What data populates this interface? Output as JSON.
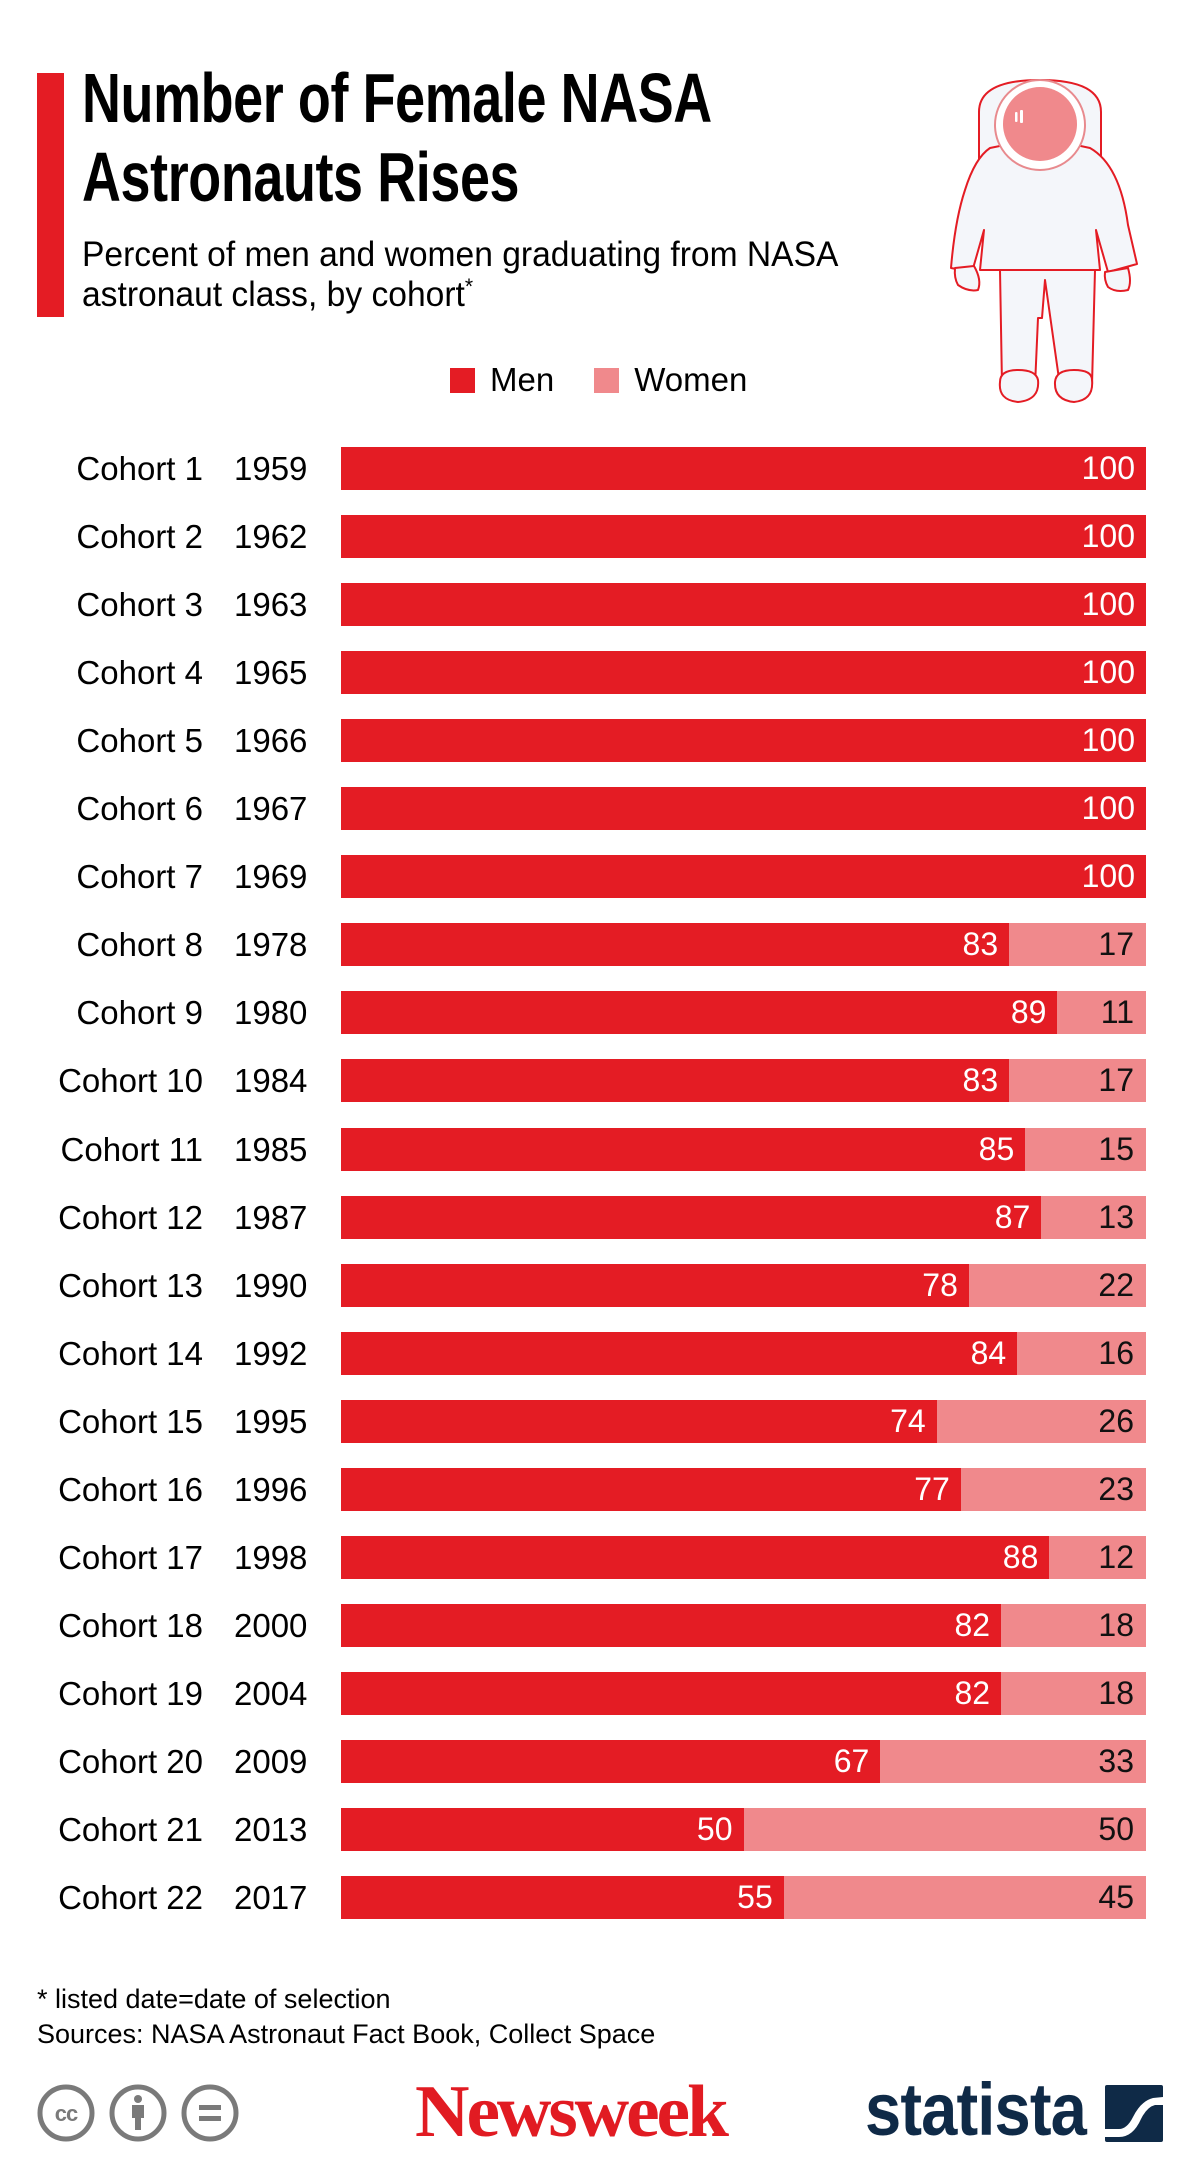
{
  "header": {
    "title_line1": "Number of Female NASA",
    "title_line2": "Astronauts Rises",
    "subtitle_line1": "Percent of men and women graduating from NASA",
    "subtitle_line2": "astronaut class, by cohort",
    "subtitle_mark": "*",
    "accent_color": "#e41c24"
  },
  "legend": {
    "items": [
      {
        "label": "Men",
        "color": "#e41c24"
      },
      {
        "label": "Women",
        "color": "#f0898c"
      }
    ]
  },
  "illustration": {
    "icon": "astronaut-icon"
  },
  "rows": [
    {
      "cohort": "Cohort 1",
      "year": "1959",
      "men": 100,
      "women": 0,
      "men_label": "100",
      "women_label": ""
    },
    {
      "cohort": "Cohort 2",
      "year": "1962",
      "men": 100,
      "women": 0,
      "men_label": "100",
      "women_label": ""
    },
    {
      "cohort": "Cohort 3",
      "year": "1963",
      "men": 100,
      "women": 0,
      "men_label": "100",
      "women_label": ""
    },
    {
      "cohort": "Cohort 4",
      "year": "1965",
      "men": 100,
      "women": 0,
      "men_label": "100",
      "women_label": ""
    },
    {
      "cohort": "Cohort 5",
      "year": "1966",
      "men": 100,
      "women": 0,
      "men_label": "100",
      "women_label": ""
    },
    {
      "cohort": "Cohort 6",
      "year": "1967",
      "men": 100,
      "women": 0,
      "men_label": "100",
      "women_label": ""
    },
    {
      "cohort": "Cohort 7",
      "year": "1969",
      "men": 100,
      "women": 0,
      "men_label": "100",
      "women_label": ""
    },
    {
      "cohort": "Cohort 8",
      "year": "1978",
      "men": 83,
      "women": 17,
      "men_label": "83",
      "women_label": "17"
    },
    {
      "cohort": "Cohort 9",
      "year": "1980",
      "men": 89,
      "women": 11,
      "men_label": "89",
      "women_label": "11"
    },
    {
      "cohort": "Cohort 10",
      "year": "1984",
      "men": 83,
      "women": 17,
      "men_label": "83",
      "women_label": "17"
    },
    {
      "cohort": "Cohort 11",
      "year": "1985",
      "men": 85,
      "women": 15,
      "men_label": "85",
      "women_label": "15"
    },
    {
      "cohort": "Cohort 12",
      "year": "1987",
      "men": 87,
      "women": 13,
      "men_label": "87",
      "women_label": "13"
    },
    {
      "cohort": "Cohort 13",
      "year": "1990",
      "men": 78,
      "women": 22,
      "men_label": "78",
      "women_label": "22"
    },
    {
      "cohort": "Cohort 14",
      "year": "1992",
      "men": 84,
      "women": 16,
      "men_label": "84",
      "women_label": "16"
    },
    {
      "cohort": "Cohort 15",
      "year": "1995",
      "men": 74,
      "women": 26,
      "men_label": "74",
      "women_label": "26"
    },
    {
      "cohort": "Cohort 16",
      "year": "1996",
      "men": 77,
      "women": 23,
      "men_label": "77",
      "women_label": "23"
    },
    {
      "cohort": "Cohort 17",
      "year": "1998",
      "men": 88,
      "women": 12,
      "men_label": "88",
      "women_label": "12"
    },
    {
      "cohort": "Cohort 18",
      "year": "2000",
      "men": 82,
      "women": 18,
      "men_label": "82",
      "women_label": "18"
    },
    {
      "cohort": "Cohort 19",
      "year": "2004",
      "men": 82,
      "women": 18,
      "men_label": "82",
      "women_label": "18"
    },
    {
      "cohort": "Cohort 20",
      "year": "2009",
      "men": 67,
      "women": 33,
      "men_label": "67",
      "women_label": "33"
    },
    {
      "cohort": "Cohort 21",
      "year": "2013",
      "men": 50,
      "women": 50,
      "men_label": "50",
      "women_label": "50"
    },
    {
      "cohort": "Cohort 22",
      "year": "2017",
      "men": 55,
      "women": 45,
      "men_label": "55",
      "women_label": "45"
    }
  ],
  "footer": {
    "note": "* listed date=date of selection",
    "sources": "Sources: NASA Astronaut Fact Book, Collect Space",
    "license_icons": [
      "cc-icon",
      "attribution-icon",
      "no-derivatives-icon"
    ],
    "publisher": "Newsweek",
    "publisher_color": "#e11b22",
    "data_provider": "statista",
    "data_provider_color": "#0f2a47"
  },
  "chart_data": {
    "type": "bar",
    "orientation": "horizontal",
    "stacked": true,
    "title": "Number of Female NASA Astronauts Rises",
    "subtitle": "Percent of men and women graduating from NASA astronaut class, by cohort*",
    "xlabel": "",
    "ylabel": "",
    "xlim": [
      0,
      100
    ],
    "grid": false,
    "legend_position": "top",
    "categories": [
      "Cohort 1 1959",
      "Cohort 2 1962",
      "Cohort 3 1963",
      "Cohort 4 1965",
      "Cohort 5 1966",
      "Cohort 6 1967",
      "Cohort 7 1969",
      "Cohort 8 1978",
      "Cohort 9 1980",
      "Cohort 10 1984",
      "Cohort 11 1985",
      "Cohort 12 1987",
      "Cohort 13 1990",
      "Cohort 14 1992",
      "Cohort 15 1995",
      "Cohort 16 1996",
      "Cohort 17 1998",
      "Cohort 18 2000",
      "Cohort 19 2004",
      "Cohort 20 2009",
      "Cohort 21 2013",
      "Cohort 22 2017"
    ],
    "series": [
      {
        "name": "Men",
        "color": "#e41c24",
        "values": [
          100,
          100,
          100,
          100,
          100,
          100,
          100,
          83,
          89,
          83,
          85,
          87,
          78,
          84,
          74,
          77,
          88,
          82,
          82,
          67,
          50,
          55
        ]
      },
      {
        "name": "Women",
        "color": "#f0898c",
        "values": [
          0,
          0,
          0,
          0,
          0,
          0,
          0,
          17,
          11,
          17,
          15,
          13,
          22,
          16,
          26,
          23,
          12,
          18,
          18,
          33,
          50,
          45
        ]
      }
    ],
    "annotations": [
      "* listed date=date of selection",
      "Sources: NASA Astronaut Fact Book, Collect Space"
    ]
  }
}
